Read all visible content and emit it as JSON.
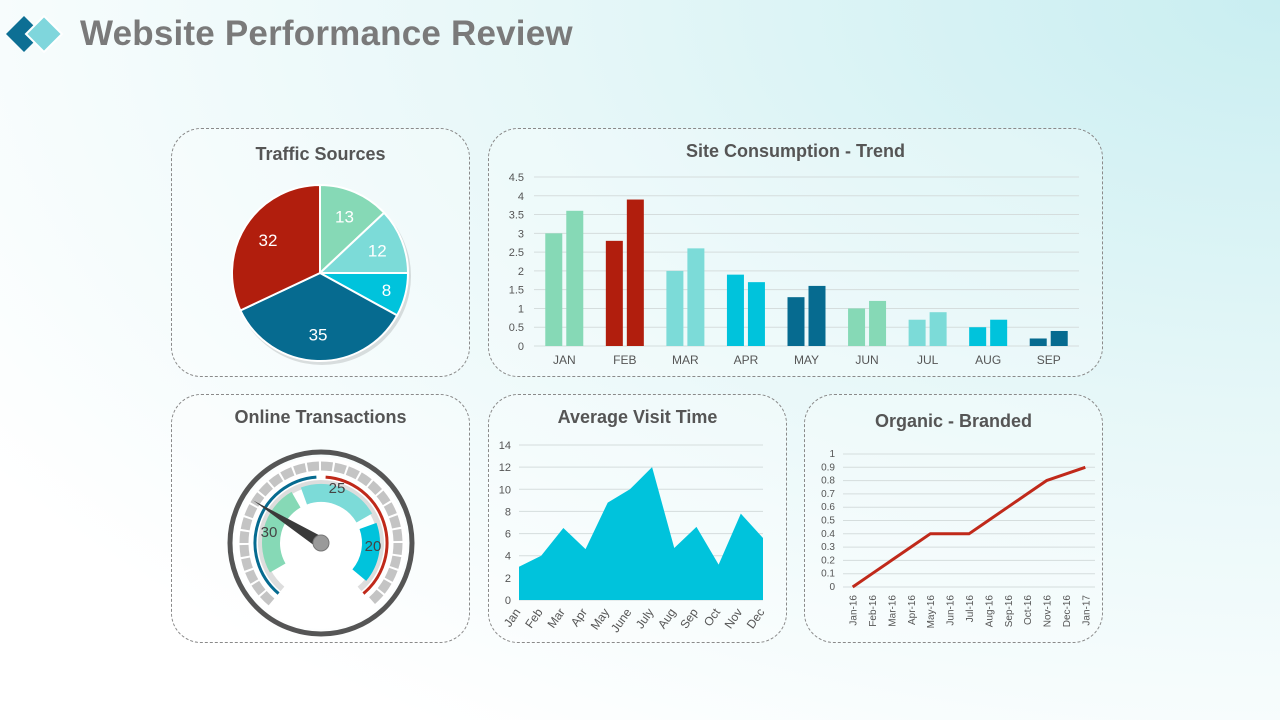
{
  "header": {
    "title": "Website Performance Review"
  },
  "colors": {
    "mint": "#86d9b6",
    "red": "#b11e0d",
    "light_teal": "#7cdbd8",
    "cyan": "#00c3dc",
    "dark_teal": "#066b90",
    "title_gray": "#7a7a7a"
  },
  "chart_data": [
    {
      "id": "traffic_sources",
      "type": "pie",
      "title": "Traffic Sources",
      "slices": [
        {
          "value": 13,
          "color": "#86d9b6"
        },
        {
          "value": 12,
          "color": "#7cdbd8"
        },
        {
          "value": 8,
          "color": "#00c3dc"
        },
        {
          "value": 35,
          "color": "#066b90"
        },
        {
          "value": 32,
          "color": "#b11e0d"
        }
      ]
    },
    {
      "id": "site_consumption",
      "type": "bar",
      "title": "Site Consumption - Trend",
      "categories": [
        "JAN",
        "FEB",
        "MAR",
        "APR",
        "MAY",
        "JUN",
        "JUL",
        "AUG",
        "SEP"
      ],
      "series": [
        {
          "values": [
            3.0,
            2.8,
            2.0,
            1.9,
            1.3,
            1.0,
            0.7,
            0.5,
            0.2
          ]
        },
        {
          "values": [
            3.6,
            3.9,
            2.6,
            1.7,
            1.6,
            1.2,
            0.9,
            0.7,
            0.4
          ]
        }
      ],
      "category_colors": [
        "#86d9b6",
        "#b11e0d",
        "#7cdbd8",
        "#00c3dc",
        "#066b90",
        "#86d9b6",
        "#7cdbd8",
        "#00c3dc",
        "#066b90"
      ],
      "yticks": [
        "0",
        "0.5",
        "1",
        "1.5",
        "2",
        "2.5",
        "3",
        "3.5",
        "4",
        "4.5"
      ],
      "ylim": [
        0,
        4.5
      ],
      "grid": true
    },
    {
      "id": "online_transactions",
      "type": "gauge",
      "title": "Online Transactions",
      "segments": [
        {
          "label": "30",
          "color": "#86d9b6"
        },
        {
          "label": "25",
          "color": "#7cdbd8"
        },
        {
          "label": "20",
          "color": "#00c3dc"
        }
      ],
      "needle_value": 22,
      "range": [
        0,
        75
      ]
    },
    {
      "id": "average_visit_time",
      "type": "area",
      "title": "Average Visit Time",
      "categories": [
        "Jan",
        "Feb",
        "Mar",
        "Apr",
        "May",
        "June",
        "July",
        "Aug",
        "Sep",
        "Oct",
        "Nov",
        "Dec"
      ],
      "values": [
        3,
        4,
        6.5,
        4.6,
        8.8,
        10,
        12,
        4.7,
        6.6,
        3.2,
        7.8,
        5.6
      ],
      "yticks": [
        "0",
        "2",
        "4",
        "6",
        "8",
        "10",
        "12",
        "14"
      ],
      "ylim": [
        0,
        14
      ],
      "color": "#00c3dc",
      "grid": true
    },
    {
      "id": "organic_branded",
      "type": "line",
      "title": "Organic - Branded",
      "categories": [
        "Jan-16",
        "Feb-16",
        "Mar-16",
        "Apr-16",
        "May-16",
        "Jun-16",
        "Jul-16",
        "Aug-16",
        "Sep-16",
        "Oct-16",
        "Nov-16",
        "Dec-16",
        "Jan-17"
      ],
      "values": [
        0,
        0.1,
        0.2,
        0.3,
        0.4,
        0.4,
        0.4,
        0.5,
        0.6,
        0.7,
        0.8,
        0.85,
        0.9
      ],
      "yticks": [
        "0",
        "0.1",
        "0.2",
        "0.3",
        "0.4",
        "0.5",
        "0.6",
        "0.7",
        "0.8",
        "0.9",
        "1"
      ],
      "ylim": [
        0,
        1
      ],
      "color": "#c0291a",
      "grid": true
    }
  ]
}
